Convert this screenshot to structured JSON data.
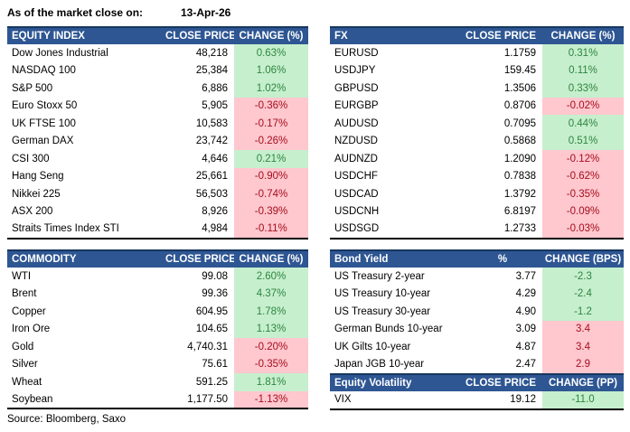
{
  "meta": {
    "as_of_label": "As of the market close on:",
    "as_of_date": "13-Apr-26",
    "source": "Source: Bloomberg, Saxo"
  },
  "colors": {
    "header_bg": "#2E5693",
    "header_border_top": "#17375E",
    "positive_bg": "#C6EFCE",
    "positive_text": "#2F853E",
    "negative_bg": "#FFC7CE",
    "negative_text": "#A50E1E",
    "table_bottom_border": "#000000"
  },
  "chart_data": [
    {
      "id": "equity_index",
      "type": "table",
      "headers": [
        "EQUITY INDEX",
        "CLOSE PRICE",
        "CHANGE (%)"
      ],
      "rows": [
        {
          "label": "Dow Jones Industrial",
          "value": "48,218",
          "change": "0.63%",
          "tone": "green"
        },
        {
          "label": "NASDAQ 100",
          "value": "25,384",
          "change": "1.06%",
          "tone": "green"
        },
        {
          "label": "S&P 500",
          "value": "6,886",
          "change": "1.02%",
          "tone": "green"
        },
        {
          "label": "Euro Stoxx 50",
          "value": "5,905",
          "change": "-0.36%",
          "tone": "red"
        },
        {
          "label": "UK FTSE 100",
          "value": "10,583",
          "change": "-0.17%",
          "tone": "red"
        },
        {
          "label": "German DAX",
          "value": "23,742",
          "change": "-0.26%",
          "tone": "red"
        },
        {
          "label": "CSI 300",
          "value": "4,646",
          "change": "0.21%",
          "tone": "green"
        },
        {
          "label": "Hang Seng",
          "value": "25,661",
          "change": "-0.90%",
          "tone": "red"
        },
        {
          "label": "Nikkei 225",
          "value": "56,503",
          "change": "-0.74%",
          "tone": "red"
        },
        {
          "label": "ASX 200",
          "value": "8,926",
          "change": "-0.39%",
          "tone": "red"
        },
        {
          "label": "Straits Times Index STI",
          "value": "4,984",
          "change": "-0.11%",
          "tone": "red"
        }
      ]
    },
    {
      "id": "fx",
      "type": "table",
      "headers": [
        "FX",
        "CLOSE PRICE",
        "CHANGE (%)"
      ],
      "rows": [
        {
          "label": "EURUSD",
          "value": "1.1759",
          "change": "0.31%",
          "tone": "green"
        },
        {
          "label": "USDJPY",
          "value": "159.45",
          "change": "0.11%",
          "tone": "green"
        },
        {
          "label": "GBPUSD",
          "value": "1.3506",
          "change": "0.33%",
          "tone": "green"
        },
        {
          "label": "EURGBP",
          "value": "0.8706",
          "change": "-0.02%",
          "tone": "red"
        },
        {
          "label": "AUDUSD",
          "value": "0.7095",
          "change": "0.44%",
          "tone": "green"
        },
        {
          "label": "NZDUSD",
          "value": "0.5868",
          "change": "0.51%",
          "tone": "green"
        },
        {
          "label": "AUDNZD",
          "value": "1.2090",
          "change": "-0.12%",
          "tone": "red"
        },
        {
          "label": "USDCHF",
          "value": "0.7838",
          "change": "-0.62%",
          "tone": "red"
        },
        {
          "label": "USDCAD",
          "value": "1.3792",
          "change": "-0.35%",
          "tone": "red"
        },
        {
          "label": "USDCNH",
          "value": "6.8197",
          "change": "-0.09%",
          "tone": "red"
        },
        {
          "label": "USDSGD",
          "value": "1.2733",
          "change": "-0.03%",
          "tone": "red"
        }
      ]
    },
    {
      "id": "commodity",
      "type": "table",
      "headers": [
        "COMMODITY",
        "CLOSE PRICE",
        "CHANGE (%)"
      ],
      "rows": [
        {
          "label": "WTI",
          "value": "99.08",
          "change": "2.60%",
          "tone": "green"
        },
        {
          "label": "Brent",
          "value": "99.36",
          "change": "4.37%",
          "tone": "green"
        },
        {
          "label": "Copper",
          "value": "604.95",
          "change": "1.78%",
          "tone": "green"
        },
        {
          "label": "Iron Ore",
          "value": "104.65",
          "change": "1.13%",
          "tone": "green"
        },
        {
          "label": "Gold",
          "value": "4,740.31",
          "change": "-0.20%",
          "tone": "red"
        },
        {
          "label": "Silver",
          "value": "75.61",
          "change": "-0.35%",
          "tone": "red"
        },
        {
          "label": "Wheat",
          "value": "591.25",
          "change": "1.81%",
          "tone": "green"
        },
        {
          "label": "Soybean",
          "value": "1,177.50",
          "change": "-1.13%",
          "tone": "red"
        }
      ]
    },
    {
      "id": "bond_yield",
      "type": "table",
      "headers": [
        "Bond Yield",
        "%",
        "CHANGE (BPS)"
      ],
      "rows": [
        {
          "label": "US Treasury 2-year",
          "value": "3.77",
          "change": "-2.3",
          "tone": "green"
        },
        {
          "label": "US Treasury 10-year",
          "value": "4.29",
          "change": "-2.4",
          "tone": "green"
        },
        {
          "label": "US Treasury 30-year",
          "value": "4.90",
          "change": "-1.2",
          "tone": "green"
        },
        {
          "label": "German Bunds 10-year",
          "value": "3.09",
          "change": "3.4",
          "tone": "red"
        },
        {
          "label": "UK Gilts 10-year",
          "value": "4.87",
          "change": "3.4",
          "tone": "red"
        },
        {
          "label": "Japan JGB 10-year",
          "value": "2.47",
          "change": "2.9",
          "tone": "red"
        }
      ]
    },
    {
      "id": "equity_volatility",
      "type": "table",
      "headers": [
        "Equity Volatility",
        "CLOSE PRICE",
        "CHANGE (PP)"
      ],
      "rows": [
        {
          "label": "VIX",
          "value": "19.12",
          "change": "-11.0",
          "tone": "green"
        }
      ]
    }
  ]
}
